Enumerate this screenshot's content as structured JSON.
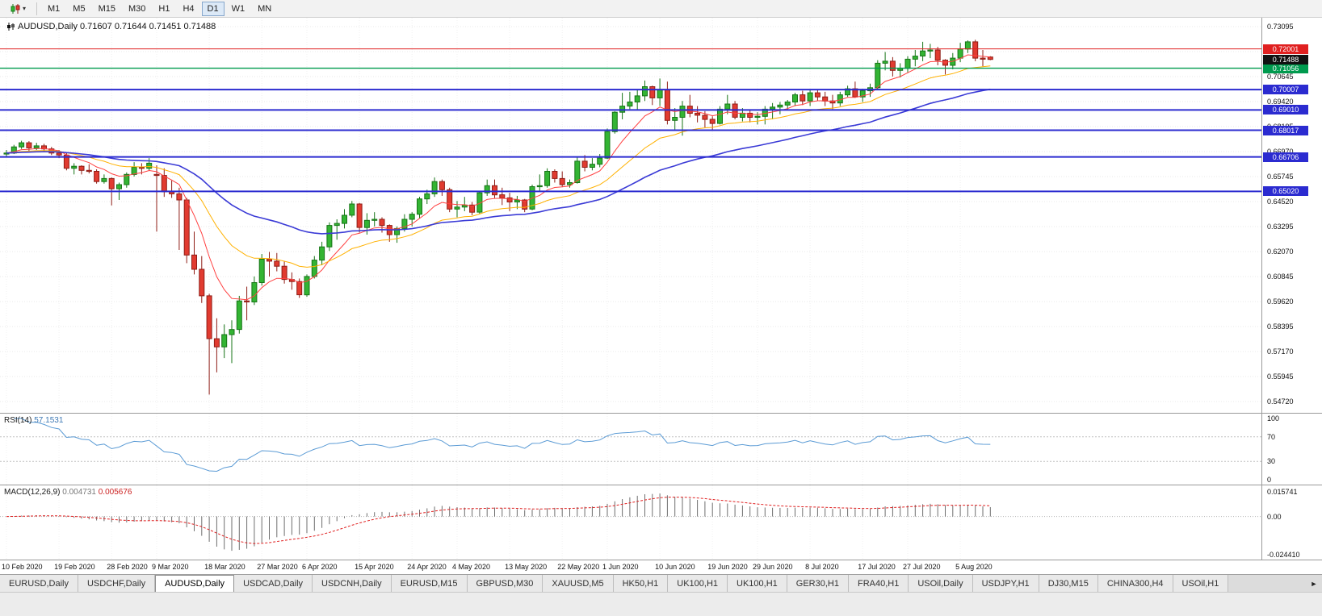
{
  "toolbar": {
    "chart_type_button": {
      "icon": "candlestick-chart-icon",
      "caret": "▾"
    },
    "timeframes": [
      "M1",
      "M5",
      "M15",
      "M30",
      "H1",
      "H4",
      "D1",
      "W1",
      "MN"
    ],
    "active_timeframe": "D1"
  },
  "chart": {
    "title_line": "AUDUSD,Daily  0.71607 0.71644 0.71451 0.71488",
    "symbol": "AUDUSD",
    "timeframe": "Daily",
    "open": "0.71607",
    "high": "0.71644",
    "low": "0.71451",
    "close": "0.71488"
  },
  "chart_data": {
    "type": "candlestick",
    "symbol": "AUDUSD",
    "period": "Daily",
    "colors": {
      "up": "#33b433",
      "up_border": "#177417",
      "down": "#e13b30",
      "down_border": "#8f1d16",
      "grid": "#e9e9e9"
    },
    "y_ticks": [
      "0.73095",
      "0.71870",
      "0.70645",
      "0.69420",
      "0.68195",
      "0.66970",
      "0.65745",
      "0.64520",
      "0.63295",
      "0.62070",
      "0.60845",
      "0.59620",
      "0.58395",
      "0.57170",
      "0.55945",
      "0.54720"
    ],
    "x_labels": [
      {
        "index": 0,
        "label": "10 Feb 2020"
      },
      {
        "index": 7,
        "label": "19 Feb 2020"
      },
      {
        "index": 14,
        "label": "28 Feb 2020"
      },
      {
        "index": 20,
        "label": "9 Mar 2020"
      },
      {
        "index": 27,
        "label": "18 Mar 2020"
      },
      {
        "index": 34,
        "label": "27 Mar 2020"
      },
      {
        "index": 40,
        "label": "6 Apr 2020"
      },
      {
        "index": 47,
        "label": "15 Apr 2020"
      },
      {
        "index": 54,
        "label": "24 Apr 2020"
      },
      {
        "index": 60,
        "label": "4 May 2020"
      },
      {
        "index": 67,
        "label": "13 May 2020"
      },
      {
        "index": 74,
        "label": "22 May 2020"
      },
      {
        "index": 80,
        "label": "1 Jun 2020"
      },
      {
        "index": 87,
        "label": "10 Jun 2020"
      },
      {
        "index": 94,
        "label": "19 Jun 2020"
      },
      {
        "index": 100,
        "label": "29 Jun 2020"
      },
      {
        "index": 107,
        "label": "8 Jul 2020"
      },
      {
        "index": 114,
        "label": "17 Jul 2020"
      },
      {
        "index": 120,
        "label": "27 Jul 2020"
      },
      {
        "index": 127,
        "label": "5 Aug 2020"
      }
    ],
    "candles": [
      [
        0.6685,
        0.6705,
        0.667,
        0.669
      ],
      [
        0.669,
        0.673,
        0.6685,
        0.672
      ],
      [
        0.672,
        0.675,
        0.671,
        0.674
      ],
      [
        0.674,
        0.6748,
        0.67,
        0.6715
      ],
      [
        0.6715,
        0.674,
        0.6705,
        0.6725
      ],
      [
        0.6725,
        0.6735,
        0.6695,
        0.671
      ],
      [
        0.671,
        0.672,
        0.668,
        0.669
      ],
      [
        0.669,
        0.6705,
        0.6665,
        0.668
      ],
      [
        0.668,
        0.669,
        0.6605,
        0.6615
      ],
      [
        0.6615,
        0.664,
        0.6585,
        0.6625
      ],
      [
        0.6625,
        0.663,
        0.6585,
        0.6605
      ],
      [
        0.6605,
        0.6635,
        0.659,
        0.66
      ],
      [
        0.66,
        0.661,
        0.654,
        0.655
      ],
      [
        0.655,
        0.6585,
        0.654,
        0.6565
      ],
      [
        0.6565,
        0.657,
        0.6433,
        0.6515
      ],
      [
        0.6515,
        0.6545,
        0.646,
        0.6535
      ],
      [
        0.6535,
        0.6595,
        0.652,
        0.6585
      ],
      [
        0.6585,
        0.6645,
        0.6575,
        0.662
      ],
      [
        0.662,
        0.664,
        0.6585,
        0.6615
      ],
      [
        0.6615,
        0.6665,
        0.6605,
        0.664
      ],
      [
        0.6585,
        0.663,
        0.6305,
        0.658
      ],
      [
        0.658,
        0.6615,
        0.6475,
        0.65
      ],
      [
        0.65,
        0.6555,
        0.647,
        0.649
      ],
      [
        0.649,
        0.652,
        0.6215,
        0.646
      ],
      [
        0.646,
        0.647,
        0.615,
        0.619
      ],
      [
        0.619,
        0.6305,
        0.6095,
        0.612
      ],
      [
        0.612,
        0.6185,
        0.5955,
        0.599
      ],
      [
        0.599,
        0.6,
        0.5506,
        0.578
      ],
      [
        0.578,
        0.588,
        0.5615,
        0.574
      ],
      [
        0.574,
        0.585,
        0.5685,
        0.58
      ],
      [
        0.58,
        0.587,
        0.566,
        0.5825
      ],
      [
        0.5825,
        0.599,
        0.5805,
        0.5965
      ],
      [
        0.5965,
        0.6035,
        0.587,
        0.596
      ],
      [
        0.596,
        0.6085,
        0.5945,
        0.6055
      ],
      [
        0.6055,
        0.6195,
        0.604,
        0.617
      ],
      [
        0.617,
        0.6205,
        0.6085,
        0.616
      ],
      [
        0.616,
        0.62,
        0.611,
        0.6135
      ],
      [
        0.6135,
        0.616,
        0.605,
        0.607
      ],
      [
        0.607,
        0.6105,
        0.602,
        0.606
      ],
      [
        0.606,
        0.6075,
        0.598,
        0.5995
      ],
      [
        0.5995,
        0.6095,
        0.5985,
        0.6085
      ],
      [
        0.6085,
        0.6185,
        0.6075,
        0.6165
      ],
      [
        0.6165,
        0.6255,
        0.614,
        0.623
      ],
      [
        0.623,
        0.635,
        0.621,
        0.6335
      ],
      [
        0.6335,
        0.6365,
        0.6265,
        0.6345
      ],
      [
        0.6345,
        0.6415,
        0.632,
        0.6385
      ],
      [
        0.6385,
        0.6455,
        0.6375,
        0.644
      ],
      [
        0.644,
        0.6445,
        0.63,
        0.6325
      ],
      [
        0.6325,
        0.6395,
        0.629,
        0.636
      ],
      [
        0.636,
        0.64,
        0.633,
        0.6365
      ],
      [
        0.6365,
        0.6375,
        0.63,
        0.6335
      ],
      [
        0.6335,
        0.634,
        0.6255,
        0.629
      ],
      [
        0.629,
        0.633,
        0.625,
        0.632
      ],
      [
        0.632,
        0.639,
        0.6305,
        0.6365
      ],
      [
        0.6365,
        0.64,
        0.633,
        0.639
      ],
      [
        0.639,
        0.6475,
        0.637,
        0.6465
      ],
      [
        0.6465,
        0.651,
        0.644,
        0.649
      ],
      [
        0.649,
        0.657,
        0.6475,
        0.655
      ],
      [
        0.655,
        0.656,
        0.648,
        0.651
      ],
      [
        0.651,
        0.652,
        0.64,
        0.6415
      ],
      [
        0.6415,
        0.6455,
        0.6375,
        0.6425
      ],
      [
        0.6425,
        0.6475,
        0.6405,
        0.6435
      ],
      [
        0.6435,
        0.645,
        0.6385,
        0.64
      ],
      [
        0.64,
        0.6505,
        0.639,
        0.6495
      ],
      [
        0.6495,
        0.656,
        0.648,
        0.653
      ],
      [
        0.653,
        0.656,
        0.647,
        0.6485
      ],
      [
        0.6485,
        0.652,
        0.6435,
        0.647
      ],
      [
        0.647,
        0.6495,
        0.6405,
        0.645
      ],
      [
        0.645,
        0.648,
        0.6415,
        0.646
      ],
      [
        0.646,
        0.6465,
        0.64,
        0.6415
      ],
      [
        0.6415,
        0.6535,
        0.641,
        0.6525
      ],
      [
        0.6525,
        0.6585,
        0.6505,
        0.653
      ],
      [
        0.653,
        0.6615,
        0.652,
        0.66
      ],
      [
        0.66,
        0.661,
        0.6545,
        0.6565
      ],
      [
        0.6565,
        0.66,
        0.6525,
        0.6535
      ],
      [
        0.6535,
        0.656,
        0.652,
        0.6545
      ],
      [
        0.6545,
        0.667,
        0.654,
        0.665
      ],
      [
        0.665,
        0.668,
        0.66,
        0.662
      ],
      [
        0.662,
        0.6665,
        0.6605,
        0.6635
      ],
      [
        0.6635,
        0.6685,
        0.662,
        0.6665
      ],
      [
        0.6665,
        0.681,
        0.666,
        0.6795
      ],
      [
        0.6795,
        0.6895,
        0.6785,
        0.689
      ],
      [
        0.689,
        0.6985,
        0.6855,
        0.692
      ],
      [
        0.692,
        0.699,
        0.6905,
        0.694
      ],
      [
        0.694,
        0.7,
        0.69,
        0.697
      ],
      [
        0.697,
        0.7045,
        0.6945,
        0.7015
      ],
      [
        0.7015,
        0.702,
        0.6925,
        0.696
      ],
      [
        0.696,
        0.7055,
        0.692,
        0.7
      ],
      [
        0.7,
        0.704,
        0.683,
        0.685
      ],
      [
        0.685,
        0.691,
        0.68,
        0.6865
      ],
      [
        0.6865,
        0.6945,
        0.6775,
        0.692
      ],
      [
        0.692,
        0.6975,
        0.6865,
        0.6885
      ],
      [
        0.6885,
        0.692,
        0.684,
        0.6875
      ],
      [
        0.6875,
        0.6895,
        0.6815,
        0.6855
      ],
      [
        0.6855,
        0.687,
        0.6805,
        0.6835
      ],
      [
        0.6835,
        0.692,
        0.683,
        0.6905
      ],
      [
        0.6905,
        0.6975,
        0.688,
        0.693
      ],
      [
        0.693,
        0.6945,
        0.6855,
        0.6865
      ],
      [
        0.6865,
        0.691,
        0.6845,
        0.6885
      ],
      [
        0.6885,
        0.69,
        0.684,
        0.6865
      ],
      [
        0.6865,
        0.689,
        0.683,
        0.687
      ],
      [
        0.687,
        0.692,
        0.683,
        0.6905
      ],
      [
        0.6905,
        0.6935,
        0.6855,
        0.6915
      ],
      [
        0.6915,
        0.694,
        0.688,
        0.6925
      ],
      [
        0.6925,
        0.695,
        0.69,
        0.694
      ],
      [
        0.694,
        0.6985,
        0.692,
        0.6975
      ],
      [
        0.6975,
        0.6995,
        0.6925,
        0.6945
      ],
      [
        0.6945,
        0.7,
        0.692,
        0.6985
      ],
      [
        0.6985,
        0.7,
        0.6945,
        0.6965
      ],
      [
        0.6965,
        0.699,
        0.692,
        0.6945
      ],
      [
        0.6945,
        0.6975,
        0.6905,
        0.6935
      ],
      [
        0.6935,
        0.699,
        0.692,
        0.6975
      ],
      [
        0.6975,
        0.702,
        0.6965,
        0.7005
      ],
      [
        0.7005,
        0.704,
        0.696,
        0.6965
      ],
      [
        0.6965,
        0.7005,
        0.694,
        0.6995
      ],
      [
        0.6995,
        0.703,
        0.6965,
        0.701
      ],
      [
        0.701,
        0.7145,
        0.7,
        0.713
      ],
      [
        0.713,
        0.7185,
        0.7095,
        0.714
      ],
      [
        0.714,
        0.716,
        0.7065,
        0.7095
      ],
      [
        0.7095,
        0.713,
        0.706,
        0.7105
      ],
      [
        0.7105,
        0.7165,
        0.7085,
        0.715
      ],
      [
        0.715,
        0.7195,
        0.7115,
        0.7165
      ],
      [
        0.7165,
        0.7235,
        0.714,
        0.719
      ],
      [
        0.719,
        0.7225,
        0.7155,
        0.7195
      ],
      [
        0.7195,
        0.721,
        0.712,
        0.7145
      ],
      [
        0.7145,
        0.715,
        0.7075,
        0.712
      ],
      [
        0.712,
        0.718,
        0.71,
        0.7155
      ],
      [
        0.7155,
        0.723,
        0.7135,
        0.72
      ],
      [
        0.72,
        0.7242,
        0.718,
        0.7235
      ],
      [
        0.7235,
        0.7245,
        0.714,
        0.7155
      ],
      [
        0.7155,
        0.7195,
        0.7115,
        0.715
      ],
      [
        0.71607,
        0.71644,
        0.71451,
        0.71488
      ]
    ],
    "moving_averages": [
      {
        "name": "ma-fast",
        "method": "ema",
        "period": 8,
        "color": "#ff4040",
        "width": 1
      },
      {
        "name": "ma-mid",
        "method": "ema",
        "period": 20,
        "color": "#ffb100",
        "width": 1
      },
      {
        "name": "ma-slow",
        "method": "ema",
        "period": 45,
        "color": "#3b3bd6",
        "width": 1.6
      }
    ],
    "h_lines": [
      {
        "price": 0.72001,
        "label": "0.72001",
        "color": "#e02020",
        "width": 1
      },
      {
        "price": 0.71056,
        "label": "0.71056",
        "color": "#009a4e",
        "width": 1.4
      },
      {
        "price": 0.70007,
        "label": "0.70007",
        "color": "#2b2bd0",
        "width": 2
      },
      {
        "price": 0.6901,
        "label": "0.69010",
        "color": "#2b2bd0",
        "width": 2
      },
      {
        "price": 0.68017,
        "label": "0.68017",
        "color": "#2b2bd0",
        "width": 2
      },
      {
        "price": 0.66706,
        "label": "0.66706",
        "color": "#2b2bd0",
        "width": 2
      },
      {
        "price": 0.6502,
        "label": "0.65020",
        "color": "#2b2bd0",
        "width": 2
      }
    ],
    "current_price": {
      "price": 0.71488,
      "label": "0.71488",
      "color": "#111111"
    },
    "rsi": {
      "label": "RSI(14)",
      "value": "57.1531",
      "period": 14,
      "color": "#5b9bd5",
      "levels": [
        "100",
        "70",
        "30",
        "0"
      ],
      "dashed_levels": [
        70,
        30
      ],
      "range": [
        0,
        100
      ]
    },
    "macd": {
      "label": "MACD(12,26,9)",
      "value_main": "0.004731",
      "value_signal": "0.005676",
      "fast": 12,
      "slow": 26,
      "signal": 9,
      "hist_color": "#6e6e6e",
      "signal_color": "#e02020",
      "axis_labels": [
        "0.015741",
        "0.00",
        "-0.024410"
      ],
      "range_max": 0.015741,
      "range_min": -0.02441
    }
  },
  "tabs": {
    "items": [
      "EURUSD,Daily",
      "USDCHF,Daily",
      "AUDUSD,Daily",
      "USDCAD,Daily",
      "USDCNH,Daily",
      "EURUSD,M15",
      "GBPUSD,M30",
      "XAUUSD,M5",
      "HK50,H1",
      "UK100,H1",
      "UK100,H1",
      "GER30,H1",
      "FRA40,H1",
      "USOil,Daily",
      "USDJPY,H1",
      "DJ30,M15",
      "CHINA300,H4",
      "USOil,H1"
    ],
    "active_index": 2,
    "scroll_right_label": "►"
  }
}
